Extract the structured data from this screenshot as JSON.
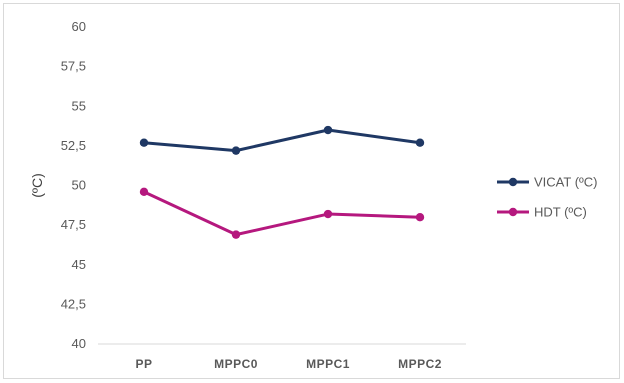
{
  "chart_data": {
    "type": "line",
    "categories": [
      "PP",
      "MPPC0",
      "MPPC1",
      "MPPC2"
    ],
    "series": [
      {
        "name": "VICAT (ºC)",
        "values": [
          52.7,
          52.2,
          53.5,
          52.7
        ],
        "color": "#1f3864"
      },
      {
        "name": "HDT (ºC)",
        "values": [
          49.6,
          46.9,
          48.2,
          48.0
        ],
        "color": "#b5187e"
      }
    ],
    "title": "",
    "xlabel": "",
    "ylabel": "(ºC)",
    "ylim": [
      40,
      60
    ],
    "yticks": [
      "40",
      "42,5",
      "45",
      "47,5",
      "50",
      "52,5",
      "55",
      "57,5",
      "60"
    ],
    "grid": false,
    "legend": "right"
  }
}
